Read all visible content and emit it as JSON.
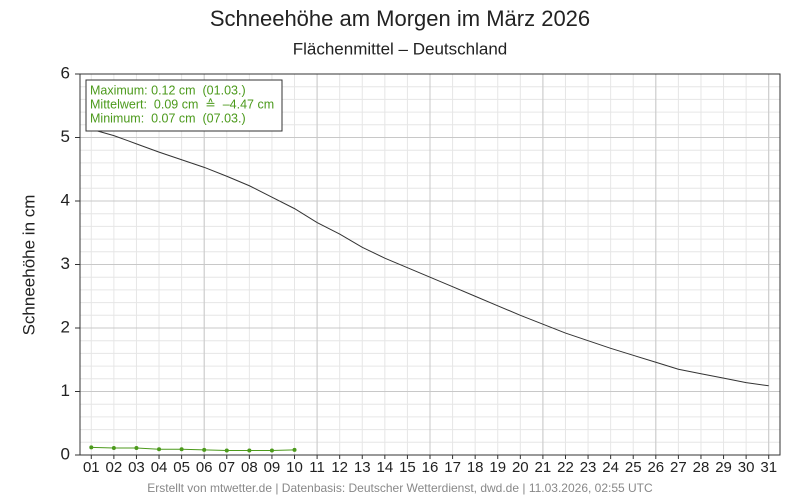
{
  "chart_data": {
    "type": "line",
    "title": "Schneehöhe am Morgen im März 2026",
    "subtitle": "Flächenmittel – Deutschland",
    "y_label": "Schneehöhe in cm",
    "categories": [
      "01",
      "02",
      "03",
      "04",
      "05",
      "06",
      "07",
      "08",
      "09",
      "10",
      "11",
      "12",
      "13",
      "14",
      "15",
      "16",
      "17",
      "18",
      "19",
      "20",
      "21",
      "22",
      "23",
      "24",
      "25",
      "26",
      "27",
      "28",
      "29",
      "30",
      "31"
    ],
    "series": [
      {
        "color": "#333333",
        "values": [
          5.13,
          5.03,
          4.9,
          4.77,
          4.65,
          4.53,
          4.39,
          4.24,
          4.06,
          3.88,
          3.66,
          3.48,
          3.27,
          3.1,
          2.95,
          2.8,
          2.65,
          2.5,
          2.35,
          2.2,
          2.06,
          1.92,
          1.8,
          1.68,
          1.57,
          1.46,
          1.35,
          1.28,
          1.21,
          1.14,
          1.09
        ],
        "markers": false
      },
      {
        "color": "#4c9a1c",
        "values": [
          0.12,
          0.11,
          0.11,
          0.09,
          0.09,
          0.08,
          0.07,
          0.07,
          0.07,
          0.08,
          null,
          null,
          null,
          null,
          null,
          null,
          null,
          null,
          null,
          null,
          null,
          null,
          null,
          null,
          null,
          null,
          null,
          null,
          null,
          null,
          null
        ],
        "markers": true
      }
    ],
    "ylim": [
      0,
      6
    ],
    "yticks": [
      0,
      1,
      2,
      3,
      4,
      5,
      6
    ],
    "grid": true,
    "annotations": [
      "Maximum: 0.12 cm  (01.03.)",
      "Mittelwert:  0.09 cm  ≙  –4.47 cm",
      "Minimum:  0.07 cm  (07.03.)"
    ],
    "source": "Erstellt von mtwetter.de | Datenbasis: Deutscher Wetterdienst, dwd.de | 11.03.2026, 02:55 UTC"
  }
}
